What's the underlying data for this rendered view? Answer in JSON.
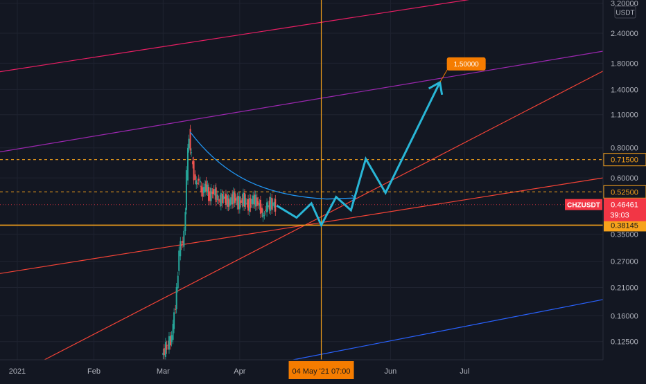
{
  "chart_data": {
    "type": "line",
    "symbol": "CHZUSDT",
    "currency_label": "USDT",
    "scale": "log",
    "ylim": [
      0.105,
      3.3
    ],
    "y_ticks": [
      {
        "value": 3.2,
        "label": "3.20000"
      },
      {
        "value": 2.4,
        "label": "2.40000"
      },
      {
        "value": 1.8,
        "label": "1.80000"
      },
      {
        "value": 1.4,
        "label": "1.40000"
      },
      {
        "value": 1.1,
        "label": "1.10000"
      },
      {
        "value": 0.8,
        "label": "0.80000"
      },
      {
        "value": 0.6,
        "label": "0.60000"
      },
      {
        "value": 0.35,
        "label": "0.35000"
      },
      {
        "value": 0.27,
        "label": "0.27000"
      },
      {
        "value": 0.21,
        "label": "0.21000"
      },
      {
        "value": 0.16,
        "label": "0.16000"
      },
      {
        "value": 0.125,
        "label": "0.12500"
      }
    ],
    "x_ticks": [
      {
        "date": "2021-01-01",
        "label": "2021"
      },
      {
        "date": "2021-02-01",
        "label": "Feb"
      },
      {
        "date": "2021-03-01",
        "label": "Mar"
      },
      {
        "date": "2021-04-01",
        "label": "Apr"
      },
      {
        "date": "2021-06-01",
        "label": "Jun"
      },
      {
        "date": "2021-07-01",
        "label": "Jul"
      }
    ],
    "xlim": [
      "2020-12-25",
      "2021-08-26"
    ],
    "crosshair": {
      "date": "2021-05-04",
      "label": "04 May '21   07:00",
      "price": 0.38145
    },
    "horizontal_levels": [
      {
        "price": 0.715,
        "label": "0.71500",
        "style": "dashed",
        "color": "#f7a21b"
      },
      {
        "price": 0.525,
        "label": "0.52500",
        "style": "dashed",
        "color": "#f7a21b"
      },
      {
        "price": 0.38145,
        "label": "0.38145",
        "style": "solid",
        "color": "#f7a21b"
      }
    ],
    "last_price": {
      "price": 0.46461,
      "label": "0.46461",
      "countdown": "39:03",
      "color": "#f23645"
    },
    "trend_lines": [
      {
        "name": "",
        "color": "#e91e63",
        "points": [
          [
            "2020-12-25",
            1.66
          ],
          [
            "2021-07-10",
            3.4
          ]
        ]
      },
      {
        "name": "",
        "color": "#9c27b0",
        "points": [
          [
            "2020-12-25",
            0.77
          ],
          [
            "2021-08-26",
            2.02
          ]
        ]
      },
      {
        "name": "",
        "color": "#f44336",
        "points": [
          [
            "2021-01-08",
            0.1
          ],
          [
            "2021-08-26",
            1.67
          ]
        ]
      },
      {
        "name": "",
        "color": "#f44336",
        "points": [
          [
            "2020-12-25",
            0.24
          ],
          [
            "2021-08-26",
            0.6
          ]
        ]
      },
      {
        "name": "",
        "color": "#2962ff",
        "points": [
          [
            "2021-04-12",
            0.1
          ],
          [
            "2021-08-26",
            0.187
          ]
        ]
      }
    ],
    "price_series": [
      [
        "2021-03-01",
        0.11
      ],
      [
        "2021-03-05",
        0.13
      ],
      [
        "2021-03-07",
        0.2
      ],
      [
        "2021-03-08",
        0.3
      ],
      [
        "2021-03-10",
        0.34
      ],
      [
        "2021-03-11",
        0.62
      ],
      [
        "2021-03-12",
        0.92
      ],
      [
        "2021-03-13",
        0.72
      ],
      [
        "2021-03-14",
        0.62
      ],
      [
        "2021-03-15",
        0.56
      ],
      [
        "2021-03-16",
        0.6
      ],
      [
        "2021-03-17",
        0.52
      ],
      [
        "2021-03-19",
        0.56
      ],
      [
        "2021-03-20",
        0.5
      ],
      [
        "2021-03-22",
        0.53
      ],
      [
        "2021-03-24",
        0.48
      ],
      [
        "2021-03-26",
        0.5
      ],
      [
        "2021-03-28",
        0.47
      ],
      [
        "2021-03-30",
        0.5
      ],
      [
        "2021-04-01",
        0.47
      ],
      [
        "2021-04-03",
        0.49
      ],
      [
        "2021-04-05",
        0.46
      ],
      [
        "2021-04-07",
        0.49
      ],
      [
        "2021-04-09",
        0.47
      ],
      [
        "2021-04-10",
        0.45
      ],
      [
        "2021-04-11",
        0.41
      ],
      [
        "2021-04-12",
        0.45
      ],
      [
        "2021-04-14",
        0.47
      ],
      [
        "2021-04-16",
        0.46
      ]
    ],
    "curve": [
      [
        "2021-03-12",
        0.93
      ],
      [
        "2021-03-26",
        0.6
      ],
      [
        "2021-04-12",
        0.505
      ],
      [
        "2021-05-06",
        0.49
      ],
      [
        "2021-05-18",
        0.495
      ]
    ],
    "projection": [
      [
        "2021-04-16",
        0.46
      ],
      [
        "2021-04-24",
        0.41
      ],
      [
        "2021-04-30",
        0.47
      ],
      [
        "2021-05-04",
        0.38145
      ],
      [
        "2021-05-10",
        0.5
      ],
      [
        "2021-05-16",
        0.44
      ],
      [
        "2021-05-22",
        0.72
      ],
      [
        "2021-05-30",
        0.52
      ],
      [
        "2021-06-21",
        1.5
      ]
    ],
    "target": {
      "date": "2021-06-21",
      "price": 1.5,
      "label": "1.50000"
    }
  }
}
